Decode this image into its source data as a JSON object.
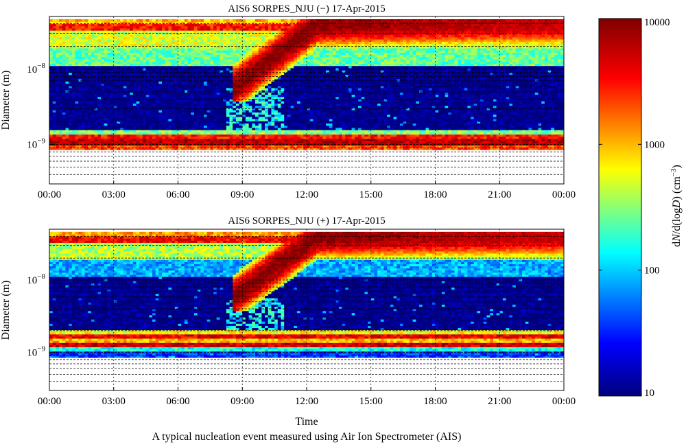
{
  "figure": {
    "caption": "A typical nucleation event measured using Air Ion Spectrometer (AIS)"
  },
  "colorbar": {
    "label_pieces": [
      "d",
      "N",
      "/d(log",
      "D",
      ") (cm",
      "−3",
      ")"
    ],
    "scale": "log",
    "range": [
      10,
      10000
    ],
    "ticks": [
      "10",
      "100",
      "1000",
      "10000"
    ],
    "colormap": [
      "#00007f",
      "#0000ff",
      "#00ffff",
      "#ffff00",
      "#ff0000",
      "#7f0000"
    ]
  },
  "chart_data": [
    {
      "type": "heatmap",
      "title": "AIS6 SORPES_NJU (−) 17-Apr-2015",
      "ylabel": "Diameter (m)",
      "xlabel": "",
      "y_scale": "log",
      "ylim": [
        3e-10,
        5e-08
      ],
      "y_tick_labels": [
        {
          "base": "10",
          "exp": "−8"
        },
        {
          "base": "10",
          "exp": "−9"
        }
      ],
      "x_tick_labels": [
        "00:00",
        "03:00",
        "06:00",
        "09:00",
        "12:00",
        "15:00",
        "18:00",
        "21:00",
        "00:00"
      ],
      "x_range_hours": [
        0,
        24
      ],
      "grid": "dashed",
      "color_scale": "log",
      "color_range": [
        10,
        10000
      ],
      "approx_bands": [
        {
          "diameter_m": [
            4.1e-08,
            4.6e-08
          ],
          "time_h": [
            0,
            24
          ],
          "dndlogd_cm3": 1000
        },
        {
          "diameter_m": [
            3.2e-08,
            4.1e-08
          ],
          "time_h": [
            0,
            24
          ],
          "dndlogd_cm3": 3000
        },
        {
          "diameter_m": [
            1.9e-08,
            3.2e-08
          ],
          "time_h": [
            0,
            24
          ],
          "dndlogd_cm3": 500
        },
        {
          "diameter_m": [
            1.1e-08,
            1.9e-08
          ],
          "time_h": [
            0,
            24
          ],
          "dndlogd_cm3": 250
        },
        {
          "diameter_m": [
            1.6e-09,
            1.1e-08
          ],
          "time_h": [
            0,
            24
          ],
          "dndlogd_cm3": 10
        },
        {
          "diameter_m": [
            1.35e-09,
            1.6e-09
          ],
          "time_h": [
            0,
            24
          ],
          "dndlogd_cm3": 300
        },
        {
          "diameter_m": [
            1.2e-09,
            1.35e-09
          ],
          "time_h": [
            0,
            24
          ],
          "dndlogd_cm3": 3000
        },
        {
          "diameter_m": [
            1e-09,
            1.2e-09
          ],
          "time_h": [
            0,
            24
          ],
          "dndlogd_cm3": 6000
        },
        {
          "diameter_m": [
            8.5e-10,
            1e-09
          ],
          "time_h": [
            0,
            24
          ],
          "dndlogd_cm3": 2000
        }
      ],
      "event": {
        "growth_start_diameter_m": 5.5e-09,
        "growth_start_time_h": 8.5,
        "growth_end_diameter_m": 4e-08,
        "growth_end_time_h": 12.5,
        "peak_dndlogd_cm3": 10000,
        "cluster_to_growth_time_h": [
          8.3,
          11.0
        ]
      }
    },
    {
      "type": "heatmap",
      "title": "AIS6 SORPES_NJU (+) 17-Apr-2015",
      "ylabel": "Diameter (m)",
      "xlabel": "Time",
      "y_scale": "log",
      "ylim": [
        3e-10,
        5e-08
      ],
      "y_tick_labels": [
        {
          "base": "10",
          "exp": "−8"
        },
        {
          "base": "10",
          "exp": "−9"
        }
      ],
      "x_tick_labels": [
        "00:00",
        "03:00",
        "06:00",
        "09:00",
        "12:00",
        "15:00",
        "18:00",
        "21:00",
        "00:00"
      ],
      "x_range_hours": [
        0,
        24
      ],
      "grid": "dashed",
      "color_scale": "log",
      "color_range": [
        10,
        10000
      ],
      "approx_bands": [
        {
          "diameter_m": [
            4.1e-08,
            4.6e-08
          ],
          "time_h": [
            0,
            24
          ],
          "dndlogd_cm3": 1200
        },
        {
          "diameter_m": [
            3.2e-08,
            4.1e-08
          ],
          "time_h": [
            0,
            24
          ],
          "dndlogd_cm3": 3500
        },
        {
          "diameter_m": [
            1.9e-08,
            3.2e-08
          ],
          "time_h": [
            0,
            24
          ],
          "dndlogd_cm3": 400
        },
        {
          "diameter_m": [
            1.1e-08,
            1.9e-08
          ],
          "time_h": [
            0,
            24
          ],
          "dndlogd_cm3": 80
        },
        {
          "diameter_m": [
            2e-09,
            1.1e-08
          ],
          "time_h": [
            0,
            24
          ],
          "dndlogd_cm3": 10
        },
        {
          "diameter_m": [
            1.8e-09,
            2e-09
          ],
          "time_h": [
            0,
            24
          ],
          "dndlogd_cm3": 600
        },
        {
          "diameter_m": [
            1.55e-09,
            1.8e-09
          ],
          "time_h": [
            0,
            24
          ],
          "dndlogd_cm3": 4000
        },
        {
          "diameter_m": [
            1.35e-09,
            1.55e-09
          ],
          "time_h": [
            0,
            24
          ],
          "dndlogd_cm3": 1000
        },
        {
          "diameter_m": [
            1.2e-09,
            1.35e-09
          ],
          "time_h": [
            0,
            24
          ],
          "dndlogd_cm3": 5000
        },
        {
          "diameter_m": [
            1.05e-09,
            1.2e-09
          ],
          "time_h": [
            0,
            24
          ],
          "dndlogd_cm3": 150
        },
        {
          "diameter_m": [
            8.5e-10,
            1.05e-09
          ],
          "time_h": [
            0,
            24
          ],
          "dndlogd_cm3": 40
        }
      ],
      "event": {
        "growth_start_diameter_m": 5.5e-09,
        "growth_start_time_h": 8.5,
        "growth_end_diameter_m": 4e-08,
        "growth_end_time_h": 12.5,
        "peak_dndlogd_cm3": 10000,
        "cluster_to_growth_time_h": [
          8.3,
          11.0
        ]
      }
    }
  ]
}
